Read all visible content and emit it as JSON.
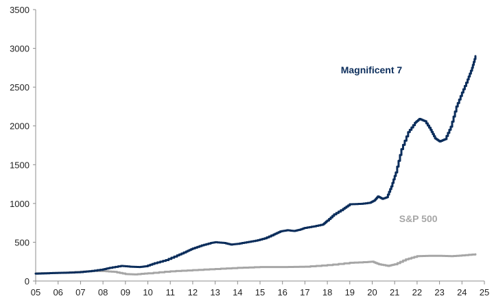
{
  "chart_data": {
    "type": "line",
    "title": "",
    "xlabel": "",
    "ylabel": "",
    "xlim": [
      2005,
      2025
    ],
    "ylim": [
      0,
      3500
    ],
    "x_ticks": [
      {
        "value": 2005,
        "label": "05"
      },
      {
        "value": 2006,
        "label": "06"
      },
      {
        "value": 2007,
        "label": "07"
      },
      {
        "value": 2008,
        "label": "08"
      },
      {
        "value": 2009,
        "label": "09"
      },
      {
        "value": 2010,
        "label": "10"
      },
      {
        "value": 2011,
        "label": "11"
      },
      {
        "value": 2012,
        "label": "12"
      },
      {
        "value": 2013,
        "label": "13"
      },
      {
        "value": 2014,
        "label": "14"
      },
      {
        "value": 2015,
        "label": "15"
      },
      {
        "value": 2016,
        "label": "16"
      },
      {
        "value": 2017,
        "label": "17"
      },
      {
        "value": 2018,
        "label": "18"
      },
      {
        "value": 2019,
        "label": "19"
      },
      {
        "value": 2020,
        "label": "20"
      },
      {
        "value": 2021,
        "label": "21"
      },
      {
        "value": 2022,
        "label": "22"
      },
      {
        "value": 2023,
        "label": "23"
      },
      {
        "value": 2024,
        "label": "24"
      },
      {
        "value": 2025,
        "label": "25"
      }
    ],
    "y_ticks": [
      {
        "value": 0,
        "label": "0"
      },
      {
        "value": 500,
        "label": "500"
      },
      {
        "value": 1000,
        "label": "1000"
      },
      {
        "value": 1500,
        "label": "1500"
      },
      {
        "value": 2000,
        "label": "2000"
      },
      {
        "value": 2500,
        "label": "2500"
      },
      {
        "value": 3000,
        "label": "3000"
      },
      {
        "value": 3500,
        "label": "3500"
      }
    ],
    "grid": false,
    "series": [
      {
        "name": "Magnificent 7",
        "color": "#0b2d5b",
        "label_anchor": {
          "x": 2018.6,
          "y": 2680
        },
        "points": [
          [
            2005.0,
            95
          ],
          [
            2005.5,
            100
          ],
          [
            2006.0,
            105
          ],
          [
            2006.5,
            108
          ],
          [
            2007.0,
            115
          ],
          [
            2007.5,
            130
          ],
          [
            2008.0,
            150
          ],
          [
            2008.3,
            170
          ],
          [
            2008.8,
            195
          ],
          [
            2009.2,
            185
          ],
          [
            2009.6,
            180
          ],
          [
            2009.9,
            190
          ],
          [
            2010.3,
            230
          ],
          [
            2010.8,
            270
          ],
          [
            2011.3,
            330
          ],
          [
            2011.7,
            380
          ],
          [
            2012.0,
            420
          ],
          [
            2012.4,
            460
          ],
          [
            2012.8,
            490
          ],
          [
            2013.0,
            500
          ],
          [
            2013.4,
            490
          ],
          [
            2013.7,
            470
          ],
          [
            2014.0,
            480
          ],
          [
            2014.4,
            500
          ],
          [
            2014.8,
            520
          ],
          [
            2015.2,
            550
          ],
          [
            2015.6,
            600
          ],
          [
            2015.9,
            640
          ],
          [
            2016.2,
            655
          ],
          [
            2016.5,
            645
          ],
          [
            2016.8,
            665
          ],
          [
            2017.0,
            685
          ],
          [
            2017.4,
            705
          ],
          [
            2017.8,
            730
          ],
          [
            2018.0,
            780
          ],
          [
            2018.3,
            860
          ],
          [
            2018.7,
            930
          ],
          [
            2019.0,
            990
          ],
          [
            2019.5,
            995
          ],
          [
            2019.9,
            1010
          ],
          [
            2020.1,
            1040
          ],
          [
            2020.25,
            1090
          ],
          [
            2020.45,
            1060
          ],
          [
            2020.65,
            1080
          ],
          [
            2020.85,
            1220
          ],
          [
            2021.05,
            1400
          ],
          [
            2021.3,
            1700
          ],
          [
            2021.6,
            1920
          ],
          [
            2021.9,
            2040
          ],
          [
            2022.1,
            2090
          ],
          [
            2022.35,
            2060
          ],
          [
            2022.6,
            1950
          ],
          [
            2022.8,
            1840
          ],
          [
            2023.0,
            1800
          ],
          [
            2023.25,
            1830
          ],
          [
            2023.5,
            1990
          ],
          [
            2023.75,
            2250
          ],
          [
            2024.0,
            2430
          ],
          [
            2024.25,
            2600
          ],
          [
            2024.45,
            2750
          ],
          [
            2024.6,
            2900
          ]
        ]
      },
      {
        "name": "S&P 500",
        "color": "#a6a6a6",
        "label_anchor": {
          "x": 2021.2,
          "y": 760
        },
        "points": [
          [
            2005.0,
            100
          ],
          [
            2006.0,
            105
          ],
          [
            2007.0,
            120
          ],
          [
            2007.6,
            130
          ],
          [
            2008.0,
            128
          ],
          [
            2008.5,
            118
          ],
          [
            2009.0,
            90
          ],
          [
            2009.4,
            85
          ],
          [
            2010.0,
            100
          ],
          [
            2011.0,
            125
          ],
          [
            2012.0,
            140
          ],
          [
            2013.0,
            155
          ],
          [
            2014.0,
            170
          ],
          [
            2015.0,
            180
          ],
          [
            2016.0,
            180
          ],
          [
            2017.0,
            185
          ],
          [
            2018.0,
            205
          ],
          [
            2019.0,
            235
          ],
          [
            2019.8,
            245
          ],
          [
            2020.0,
            250
          ],
          [
            2020.3,
            215
          ],
          [
            2020.7,
            195
          ],
          [
            2021.0,
            215
          ],
          [
            2021.5,
            280
          ],
          [
            2022.0,
            320
          ],
          [
            2022.5,
            325
          ],
          [
            2023.0,
            325
          ],
          [
            2023.5,
            320
          ],
          [
            2024.0,
            330
          ],
          [
            2024.6,
            345
          ]
        ]
      }
    ]
  }
}
